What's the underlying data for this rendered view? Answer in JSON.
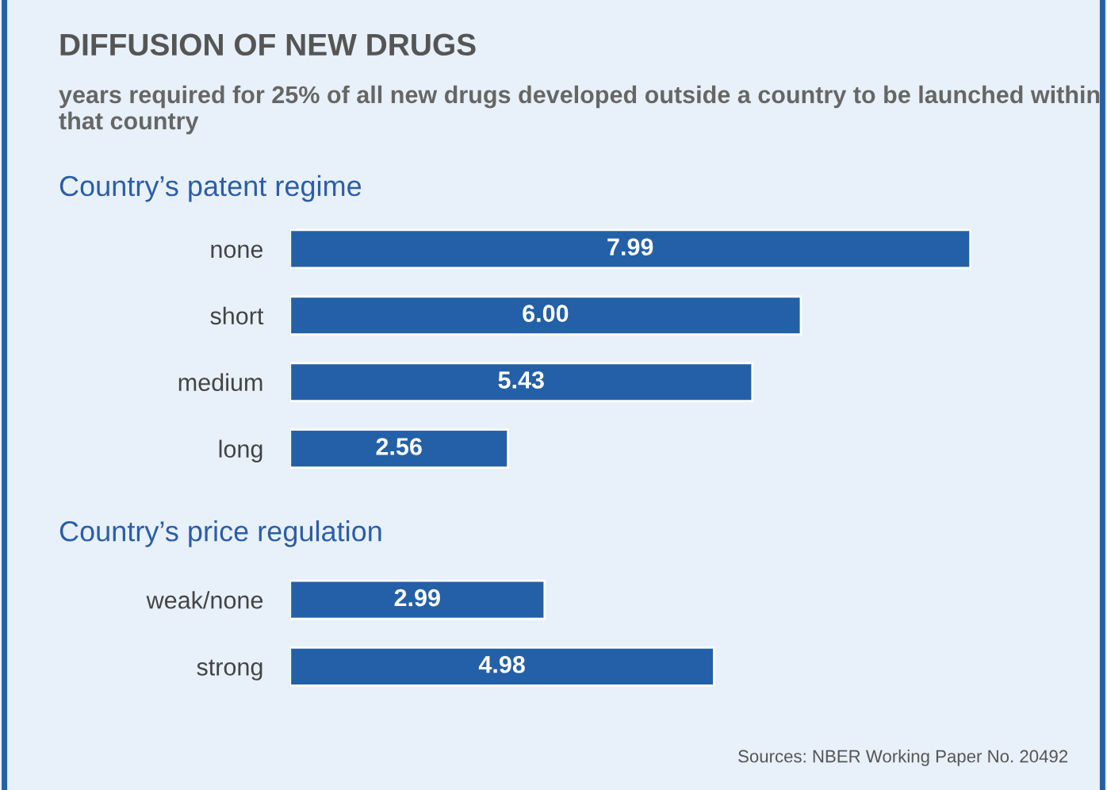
{
  "chart_data": [
    {
      "type": "bar",
      "orientation": "horizontal",
      "title": "DIFFUSION OF NEW DRUGS",
      "subtitle": "years required for 25% of all new drugs developed outside a country to be launched within that country",
      "annotations": [
        "Country’s patent regime"
      ],
      "categories": [
        "none",
        "short",
        "medium",
        "long"
      ],
      "values": [
        7.99,
        6.0,
        5.43,
        2.56
      ],
      "value_labels": [
        "7.99",
        "6.00",
        "5.43",
        "2.56"
      ],
      "color": "#2460a7",
      "tick_labels": "y",
      "grid": false,
      "legend": false
    },
    {
      "type": "bar",
      "orientation": "horizontal",
      "title": "Country’s price regulation",
      "annotations": [
        "Sources: NBER Working Paper No. 20492"
      ],
      "categories": [
        "weak/none",
        "strong"
      ],
      "values": [
        2.99,
        4.98
      ],
      "value_labels": [
        "2.99",
        "4.98"
      ],
      "color": "#2460a7",
      "tick_labels": "y",
      "grid": false,
      "legend": false
    }
  ]
}
